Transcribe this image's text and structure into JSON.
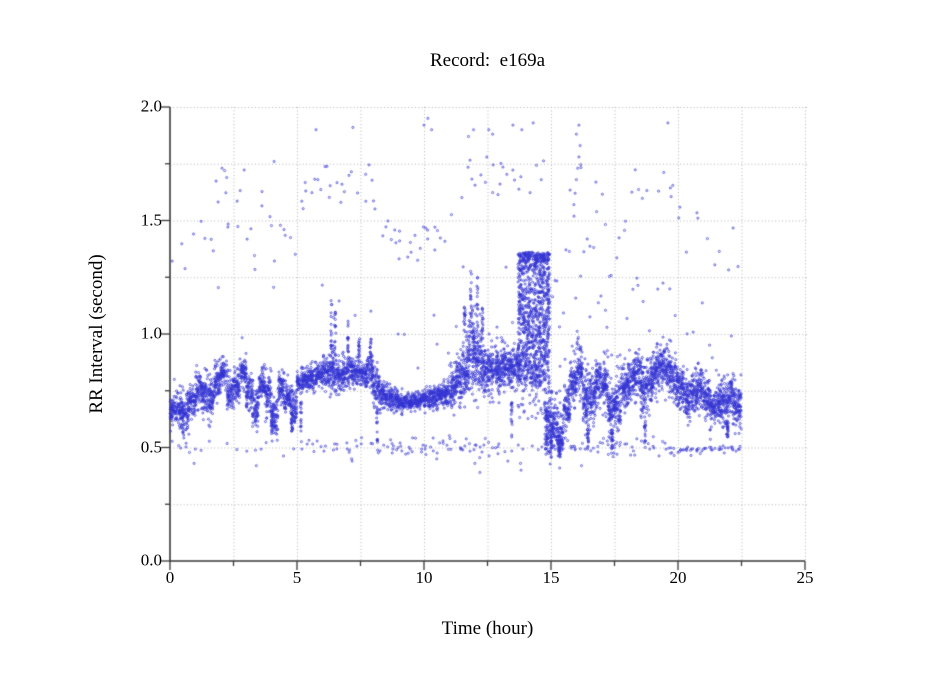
{
  "figure": {
    "background": "#ffffff"
  },
  "chart_data": {
    "type": "scatter",
    "title": "Record:  e169a",
    "xlabel": "Time (hour)",
    "ylabel": "RR Interval (second)",
    "xlim": [
      0,
      25
    ],
    "ylim": [
      0.0,
      2.0
    ],
    "x_tick_labels": [
      "0",
      "5",
      "10",
      "15",
      "20",
      "25"
    ],
    "x_tick_values": [
      0,
      5,
      10,
      15,
      20,
      25
    ],
    "x_minor_step": 2.5,
    "y_tick_labels": [
      "0.0",
      "0.5",
      "1.0",
      "1.5",
      "2.0"
    ],
    "y_tick_values": [
      0.0,
      0.5,
      1.0,
      1.5,
      2.0
    ],
    "y_minor_step": 0.25,
    "grid": {
      "style": "dotted",
      "color": "#b4b4b4",
      "x_step": 2.5,
      "y_step": 0.25
    },
    "axis_color": "#3a3a3a",
    "marker": {
      "shape": "open-circle",
      "radius_px": 1.05,
      "color": "#3434d2"
    },
    "legend": "none",
    "data_hours": [
      0,
      22.5
    ],
    "band_bin_hours": 0.25,
    "band": [
      [
        0.66,
        0.06
      ],
      [
        0.67,
        0.07
      ],
      [
        0.65,
        0.08
      ],
      [
        0.7,
        0.07
      ],
      [
        0.76,
        0.07
      ],
      [
        0.73,
        0.08
      ],
      [
        0.71,
        0.08
      ],
      [
        0.8,
        0.08
      ],
      [
        0.83,
        0.06
      ],
      [
        0.74,
        0.07
      ],
      [
        0.77,
        0.07
      ],
      [
        0.83,
        0.06
      ],
      [
        0.74,
        0.08
      ],
      [
        0.68,
        0.08
      ],
      [
        0.78,
        0.07
      ],
      [
        0.73,
        0.08
      ],
      [
        0.64,
        0.08
      ],
      [
        0.76,
        0.07
      ],
      [
        0.72,
        0.07
      ],
      [
        0.67,
        0.08
      ],
      [
        0.79,
        0.05
      ],
      [
        0.8,
        0.05
      ],
      [
        0.81,
        0.05
      ],
      [
        0.82,
        0.05
      ],
      [
        0.83,
        0.06
      ],
      [
        0.84,
        0.08
      ],
      [
        0.82,
        0.06
      ],
      [
        0.83,
        0.06
      ],
      [
        0.84,
        0.06
      ],
      [
        0.83,
        0.05
      ],
      [
        0.82,
        0.05
      ],
      [
        0.84,
        0.07
      ],
      [
        0.77,
        0.08
      ],
      [
        0.73,
        0.06
      ],
      [
        0.72,
        0.05
      ],
      [
        0.71,
        0.04
      ],
      [
        0.7,
        0.04
      ],
      [
        0.7,
        0.03
      ],
      [
        0.7,
        0.03
      ],
      [
        0.71,
        0.03
      ],
      [
        0.71,
        0.04
      ],
      [
        0.72,
        0.04
      ],
      [
        0.73,
        0.05
      ],
      [
        0.74,
        0.06
      ],
      [
        0.76,
        0.08
      ],
      [
        0.8,
        0.1
      ],
      [
        0.85,
        0.12
      ],
      [
        0.92,
        0.16
      ],
      [
        0.88,
        0.14
      ],
      [
        0.85,
        0.11
      ],
      [
        0.84,
        0.1
      ],
      [
        0.84,
        0.1
      ],
      [
        0.85,
        0.1
      ],
      [
        0.85,
        0.09
      ],
      [
        0.86,
        0.09
      ],
      [
        0.82,
        0.06
      ],
      [
        0.82,
        0.06
      ],
      [
        0.82,
        0.06
      ],
      [
        0.82,
        0.06
      ],
      [
        0.6,
        0.12
      ],
      [
        0.6,
        0.1
      ],
      [
        0.55,
        0.1
      ],
      [
        0.68,
        0.1
      ],
      [
        0.78,
        0.1
      ],
      [
        0.84,
        0.1
      ],
      [
        0.7,
        0.13
      ],
      [
        0.72,
        0.1
      ],
      [
        0.8,
        0.09
      ],
      [
        0.78,
        0.1
      ],
      [
        0.66,
        0.13
      ],
      [
        0.7,
        0.11
      ],
      [
        0.76,
        0.09
      ],
      [
        0.8,
        0.09
      ],
      [
        0.83,
        0.09
      ],
      [
        0.76,
        0.12
      ],
      [
        0.78,
        0.1
      ],
      [
        0.83,
        0.09
      ],
      [
        0.86,
        0.09
      ],
      [
        0.84,
        0.09
      ],
      [
        0.79,
        0.09
      ],
      [
        0.76,
        0.09
      ],
      [
        0.72,
        0.09
      ],
      [
        0.74,
        0.08
      ],
      [
        0.76,
        0.08
      ],
      [
        0.72,
        0.08
      ],
      [
        0.67,
        0.09
      ],
      [
        0.7,
        0.09
      ],
      [
        0.68,
        0.1
      ],
      [
        0.72,
        0.09
      ],
      [
        0.68,
        0.08
      ]
    ],
    "block": {
      "t0": 13.7,
      "t1": 14.95,
      "y0": 0.78,
      "y1": 1.36,
      "core": [
        0.9,
        1.32
      ],
      "suppress_band": [
        13.7,
        14.7
      ],
      "n": 950,
      "n_below": 40,
      "below": [
        0.62,
        0.78
      ]
    },
    "spikes": [
      [
        0.5,
        0.56,
        0.68
      ],
      [
        4.0,
        0.55,
        0.67
      ],
      [
        4.8,
        0.57,
        0.66
      ],
      [
        5.15,
        0.56,
        0.7
      ],
      [
        6.35,
        0.92,
        1.18
      ],
      [
        6.5,
        0.9,
        1.1
      ],
      [
        7.0,
        0.92,
        1.06
      ],
      [
        7.45,
        0.9,
        1.0
      ],
      [
        7.9,
        0.88,
        0.98
      ],
      [
        8.15,
        0.52,
        0.68
      ],
      [
        11.6,
        1.0,
        1.12
      ],
      [
        11.85,
        1.05,
        1.28
      ],
      [
        12.1,
        1.0,
        1.3
      ],
      [
        12.3,
        0.98,
        1.12
      ],
      [
        13.45,
        0.52,
        0.7
      ],
      [
        14.85,
        0.5,
        0.66
      ],
      [
        15.0,
        0.45,
        0.6
      ],
      [
        15.35,
        0.44,
        0.54
      ],
      [
        16.45,
        0.5,
        0.6
      ],
      [
        17.4,
        0.47,
        0.58
      ],
      [
        18.7,
        0.52,
        0.62
      ],
      [
        21.95,
        0.54,
        0.62
      ]
    ],
    "upper_cloud": {
      "factor": 2.0,
      "cap": 1.7,
      "jitter": 0.16,
      "max": 1.8,
      "density_segments": [
        [
          0,
          1.5,
          1.2
        ],
        [
          1.5,
          8.5,
          1.8
        ],
        [
          8.5,
          10.5,
          2.8
        ],
        [
          10.5,
          13.7,
          1.8
        ],
        [
          13.7,
          15.0,
          1.0
        ],
        [
          15.0,
          18.0,
          2.0
        ],
        [
          18.0,
          19.5,
          1.3
        ],
        [
          19.5,
          22.5,
          1.4
        ]
      ]
    },
    "mid_cloud": {
      "factor": 1.35,
      "jitter": 0.3,
      "max": 1.42,
      "density_segments": [
        [
          0,
          5.5,
          0.25
        ],
        [
          5.5,
          8.0,
          0.5
        ],
        [
          8.0,
          10.8,
          0.35
        ],
        [
          10.8,
          13.7,
          0.8
        ],
        [
          15.0,
          18.5,
          1.3
        ],
        [
          18.5,
          22.5,
          0.9
        ]
      ]
    },
    "lower_cloud": {
      "center": 0.505,
      "jitter": 0.05,
      "tight_after": 19.5,
      "tight_center": 0.49,
      "tight_jitter": 0.028,
      "density_segments": [
        [
          0,
          1,
          1.5
        ],
        [
          1,
          5,
          0.6
        ],
        [
          5,
          8.5,
          2.2
        ],
        [
          8.5,
          12.8,
          3.2
        ],
        [
          12.8,
          14.6,
          1.0
        ],
        [
          14.6,
          17.5,
          3.2
        ],
        [
          17.5,
          19.5,
          2.6
        ],
        [
          19.5,
          22.5,
          4.2
        ]
      ]
    },
    "outliers_high": [
      [
        5.75,
        1.9
      ],
      [
        7.2,
        1.91
      ],
      [
        10.0,
        1.92
      ],
      [
        10.15,
        1.95
      ],
      [
        10.3,
        1.9
      ],
      [
        11.75,
        1.87
      ],
      [
        11.95,
        1.9
      ],
      [
        12.55,
        1.9
      ],
      [
        12.7,
        1.88
      ],
      [
        13.5,
        1.92
      ],
      [
        13.85,
        1.9
      ],
      [
        14.3,
        1.93
      ],
      [
        16.0,
        1.88
      ],
      [
        16.1,
        1.92
      ],
      [
        19.6,
        1.93
      ],
      [
        4.1,
        1.76
      ],
      [
        2.05,
        1.73
      ],
      [
        2.15,
        1.72
      ]
    ],
    "outliers_low": [
      [
        0.95,
        0.43
      ],
      [
        3.4,
        0.42
      ],
      [
        7.15,
        0.45
      ],
      [
        7.17,
        0.44
      ],
      [
        10.5,
        0.45
      ],
      [
        12.0,
        0.43
      ],
      [
        12.2,
        0.39
      ],
      [
        13.3,
        0.44
      ],
      [
        13.8,
        0.43
      ],
      [
        13.82,
        0.4
      ],
      [
        16.2,
        0.42
      ],
      [
        17.6,
        0.47
      ]
    ],
    "streak": [
      [
        15.9,
        1.57
      ],
      [
        15.95,
        1.62
      ],
      [
        16.0,
        1.68
      ],
      [
        16.05,
        1.73
      ],
      [
        16.1,
        1.78
      ],
      [
        16.15,
        1.83
      ]
    ],
    "seed": 20240613
  }
}
